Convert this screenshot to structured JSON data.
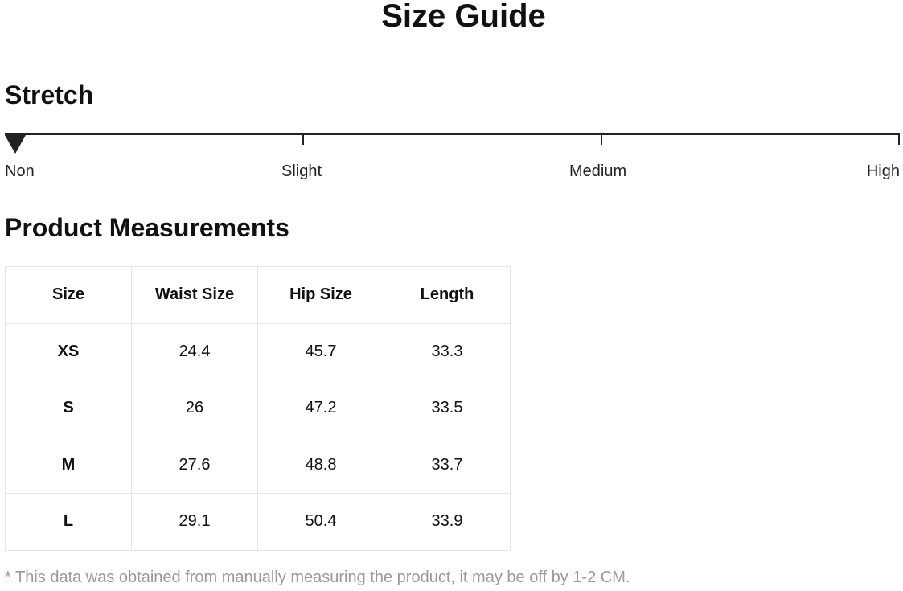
{
  "title": "Size Guide",
  "stretch": {
    "heading": "Stretch",
    "levels": [
      "Non",
      "Slight",
      "Medium",
      "High"
    ],
    "selected": "Non",
    "marker_icon": "triangle-down-icon"
  },
  "measurements": {
    "heading": "Product Measurements",
    "columns": [
      "Size",
      "Waist Size",
      "Hip Size",
      "Length"
    ],
    "rows": [
      [
        "XS",
        "24.4",
        "45.7",
        "33.3"
      ],
      [
        "S",
        "26",
        "47.2",
        "33.5"
      ],
      [
        "M",
        "27.6",
        "48.8",
        "33.7"
      ],
      [
        "L",
        "29.1",
        "50.4",
        "33.9"
      ]
    ]
  },
  "note": "* This data was obtained from manually measuring the product, it may be off by 1-2 CM."
}
